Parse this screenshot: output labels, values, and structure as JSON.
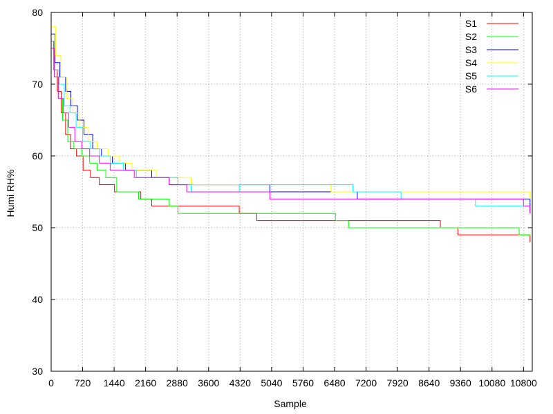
{
  "chart_data": {
    "type": "line",
    "title": "",
    "xlabel": "Sample",
    "ylabel": "Humi RH%",
    "xlim": [
      0,
      11000
    ],
    "ylim": [
      30,
      80
    ],
    "x_ticks": [
      0,
      720,
      1440,
      2160,
      2880,
      3600,
      4320,
      5040,
      5760,
      6480,
      7200,
      7920,
      8640,
      9360,
      10080,
      10800
    ],
    "y_ticks": [
      30,
      40,
      50,
      60,
      70,
      80
    ],
    "grid": true,
    "legend_position": "top-right",
    "series": [
      {
        "name": "S1",
        "color": "#ff0000",
        "points": [
          [
            0,
            76
          ],
          [
            60,
            72
          ],
          [
            140,
            69
          ],
          [
            230,
            66
          ],
          [
            330,
            63
          ],
          [
            440,
            61
          ],
          [
            580,
            60
          ],
          [
            730,
            58
          ],
          [
            900,
            57
          ],
          [
            1100,
            56
          ],
          [
            1300,
            56
          ],
          [
            1450,
            55
          ],
          [
            2050,
            54
          ],
          [
            2300,
            53
          ],
          [
            4300,
            52
          ],
          [
            4700,
            51
          ],
          [
            8300,
            51
          ],
          [
            8900,
            50
          ],
          [
            9300,
            49
          ],
          [
            10200,
            49
          ],
          [
            10950,
            48
          ]
        ]
      },
      {
        "name": "S2",
        "color": "#00ff00",
        "points": [
          [
            0,
            75
          ],
          [
            70,
            71
          ],
          [
            160,
            68
          ],
          [
            260,
            65
          ],
          [
            380,
            62
          ],
          [
            520,
            61
          ],
          [
            700,
            60
          ],
          [
            880,
            59
          ],
          [
            1050,
            58
          ],
          [
            1250,
            57
          ],
          [
            1500,
            55
          ],
          [
            1900,
            55
          ],
          [
            2000,
            54
          ],
          [
            2700,
            53
          ],
          [
            2900,
            52
          ],
          [
            4300,
            52
          ],
          [
            5900,
            52
          ],
          [
            6500,
            51
          ],
          [
            6800,
            50
          ],
          [
            9300,
            50
          ],
          [
            10000,
            50
          ],
          [
            10700,
            49
          ],
          [
            10950,
            49
          ]
        ]
      },
      {
        "name": "S3",
        "color": "#0000ff",
        "points": [
          [
            0,
            77
          ],
          [
            90,
            73
          ],
          [
            200,
            71
          ],
          [
            330,
            69
          ],
          [
            450,
            67
          ],
          [
            600,
            65
          ],
          [
            750,
            63
          ],
          [
            950,
            61
          ],
          [
            1150,
            60
          ],
          [
            1400,
            59
          ],
          [
            1700,
            58
          ],
          [
            2000,
            58
          ],
          [
            2300,
            57
          ],
          [
            2700,
            56
          ],
          [
            3400,
            56
          ],
          [
            4000,
            56
          ],
          [
            4500,
            56
          ],
          [
            5000,
            55
          ],
          [
            5600,
            55
          ],
          [
            6300,
            55
          ],
          [
            7000,
            54
          ],
          [
            8000,
            54
          ],
          [
            10100,
            54
          ],
          [
            10800,
            54
          ],
          [
            10950,
            52
          ]
        ]
      },
      {
        "name": "S4",
        "color": "#ffff00",
        "points": [
          [
            0,
            78
          ],
          [
            100,
            74
          ],
          [
            220,
            71
          ],
          [
            350,
            68
          ],
          [
            500,
            66
          ],
          [
            650,
            64
          ],
          [
            850,
            62
          ],
          [
            1050,
            61
          ],
          [
            1300,
            60
          ],
          [
            1550,
            59
          ],
          [
            1850,
            58
          ],
          [
            2200,
            58
          ],
          [
            2400,
            57
          ],
          [
            3000,
            57
          ],
          [
            3200,
            56
          ],
          [
            4300,
            56
          ],
          [
            5000,
            56
          ],
          [
            5700,
            56
          ],
          [
            6400,
            55
          ],
          [
            7000,
            55
          ],
          [
            8000,
            55
          ],
          [
            9500,
            55
          ],
          [
            10200,
            55
          ],
          [
            10950,
            54
          ]
        ]
      },
      {
        "name": "S5",
        "color": "#00ffff",
        "points": [
          [
            0,
            76
          ],
          [
            80,
            72
          ],
          [
            180,
            70
          ],
          [
            300,
            67
          ],
          [
            430,
            66
          ],
          [
            570,
            64
          ],
          [
            720,
            62
          ],
          [
            900,
            61
          ],
          [
            1100,
            60
          ],
          [
            1350,
            59
          ],
          [
            1650,
            58
          ],
          [
            1950,
            57
          ],
          [
            2300,
            57
          ],
          [
            2900,
            56
          ],
          [
            3200,
            55
          ],
          [
            3600,
            55
          ],
          [
            4300,
            56
          ],
          [
            4700,
            56
          ],
          [
            6000,
            56
          ],
          [
            6600,
            56
          ],
          [
            6900,
            55
          ],
          [
            8000,
            54
          ],
          [
            9300,
            54
          ],
          [
            9700,
            53
          ],
          [
            10950,
            53
          ]
        ]
      },
      {
        "name": "S6",
        "color": "#ff00ff",
        "points": [
          [
            0,
            75
          ],
          [
            75,
            71
          ],
          [
            170,
            68
          ],
          [
            280,
            66
          ],
          [
            400,
            64
          ],
          [
            540,
            62
          ],
          [
            700,
            61
          ],
          [
            880,
            60
          ],
          [
            1100,
            59
          ],
          [
            1350,
            58
          ],
          [
            1600,
            58
          ],
          [
            1900,
            57
          ],
          [
            2300,
            57
          ],
          [
            2700,
            56
          ],
          [
            3100,
            55
          ],
          [
            3600,
            55
          ],
          [
            4300,
            55
          ],
          [
            5000,
            54
          ],
          [
            5700,
            54
          ],
          [
            6400,
            54
          ],
          [
            7000,
            54
          ],
          [
            8000,
            54
          ],
          [
            9000,
            54
          ],
          [
            10200,
            54
          ],
          [
            10800,
            53
          ],
          [
            10950,
            52
          ]
        ]
      }
    ]
  }
}
